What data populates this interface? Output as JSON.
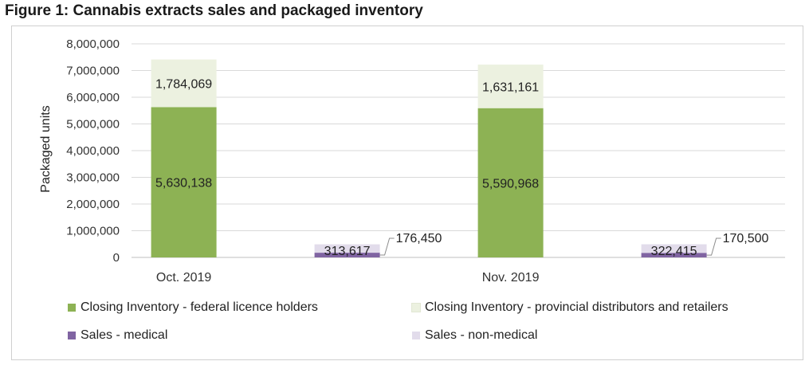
{
  "title": "Figure 1: Cannabis extracts sales and packaged inventory",
  "chart_data": {
    "type": "bar",
    "stacked": true,
    "title": "Figure 1: Cannabis extracts sales and packaged inventory",
    "ylabel": "Packaged units",
    "xlabel": "",
    "ylim": [
      0,
      8000000
    ],
    "yticks": [
      "0",
      "1,000,000",
      "2,000,000",
      "3,000,000",
      "4,000,000",
      "5,000,000",
      "6,000,000",
      "7,000,000",
      "8,000,000"
    ],
    "grid": true,
    "legend_position": "bottom",
    "categories": [
      "Oct. 2019",
      "Nov. 2019"
    ],
    "series": [
      {
        "name": "Closing Inventory - federal licence holders",
        "group": "inventory",
        "color": "#8db254",
        "values": [
          5630138,
          5590968
        ],
        "labels": [
          "5,630,138",
          "5,590,968"
        ]
      },
      {
        "name": "Closing Inventory - provincial distributors and retailers",
        "group": "inventory",
        "color": "#ecf1e0",
        "values": [
          1784069,
          1631161
        ],
        "labels": [
          "1,784,069",
          "1,631,161"
        ]
      },
      {
        "name": "Sales - medical",
        "group": "sales",
        "color": "#8064a2",
        "values": [
          176450,
          170500
        ],
        "labels": [
          "176,450",
          "170,500"
        ]
      },
      {
        "name": "Sales - non-medical",
        "group": "sales",
        "color": "#e2dceb",
        "values": [
          313617,
          322415
        ],
        "labels": [
          "313,617",
          "322,415"
        ]
      }
    ]
  }
}
